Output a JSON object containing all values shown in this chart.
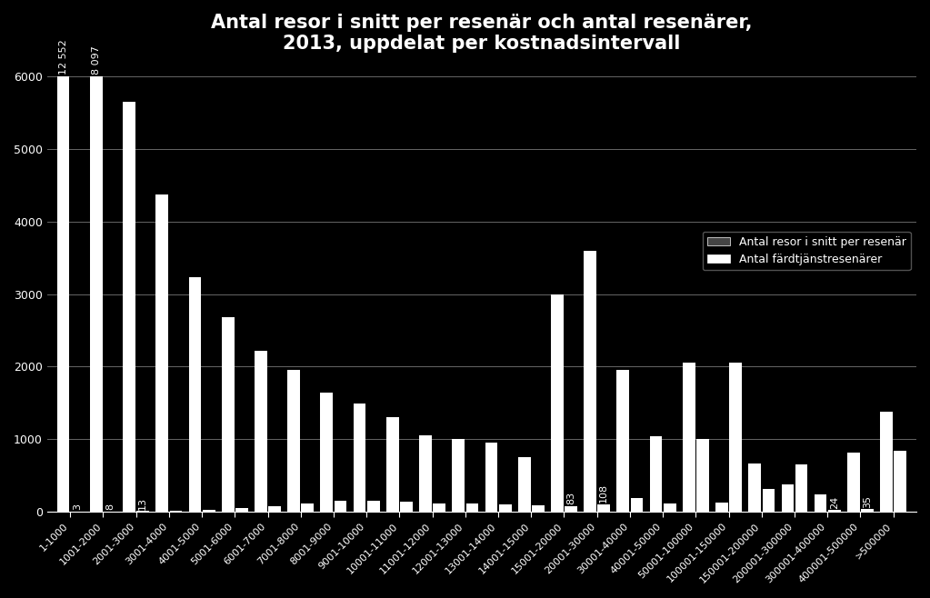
{
  "title": "Antal resor i snitt per resenär och antal resenärer,\n2013, uppdelat per kostnadsintervall",
  "background_color": "#000000",
  "text_color": "#ffffff",
  "grid_color": "#666666",
  "categories": [
    "1-1000",
    "1001-2000",
    "2001-3000",
    "3001-4000",
    "4001-5000",
    "5001-6000",
    "6001-7000",
    "7001-8000",
    "8001-9000",
    "9001-10000",
    "10001-11000",
    "11001-12000",
    "12001-13000",
    "13001-14000",
    "14001-15000",
    "15001-20000",
    "20001-30000",
    "30001-40000",
    "40001-50000",
    "50001-100000",
    "100001-150000",
    "150001-200000",
    "200001-300000",
    "300001-400000",
    "400001-500000",
    ">500000"
  ],
  "resor_snitt": [
    6000,
    6000,
    5650,
    4370,
    3230,
    2680,
    2220,
    1960,
    1640,
    1490,
    1300,
    1060,
    1000,
    950,
    760,
    3000,
    3600,
    1960,
    1040,
    2060,
    130,
    660,
    380,
    240,
    820,
    1380
  ],
  "resanarer": [
    3,
    8,
    13,
    20,
    30,
    50,
    80,
    120,
    150,
    150,
    140,
    120,
    110,
    100,
    90,
    83,
    108,
    190,
    110,
    1000,
    2050,
    310,
    650,
    24,
    35,
    840
  ],
  "resor_snitt_labels": [
    "12 552",
    "8 097",
    null,
    null,
    null,
    null,
    null,
    null,
    null,
    null,
    null,
    null,
    null,
    null,
    null,
    null,
    null,
    null,
    null,
    null,
    null,
    null,
    null,
    null,
    null,
    null
  ],
  "resanarer_labels": [
    3,
    8,
    13,
    null,
    null,
    null,
    null,
    null,
    null,
    null,
    null,
    null,
    null,
    null,
    null,
    83,
    108,
    null,
    null,
    null,
    null,
    null,
    null,
    24,
    35,
    null
  ],
  "bar_color": "#ffffff",
  "ylim": [
    0,
    6200
  ],
  "yticks": [
    0,
    1000,
    2000,
    3000,
    4000,
    5000,
    6000
  ],
  "legend_label1": "Antal resor i snitt per resenär",
  "legend_label2": "Antal färdtjänstresenärer",
  "title_fontsize": 15,
  "tick_fontsize": 9,
  "bar_width": 0.38,
  "bar_gap": 0.42
}
